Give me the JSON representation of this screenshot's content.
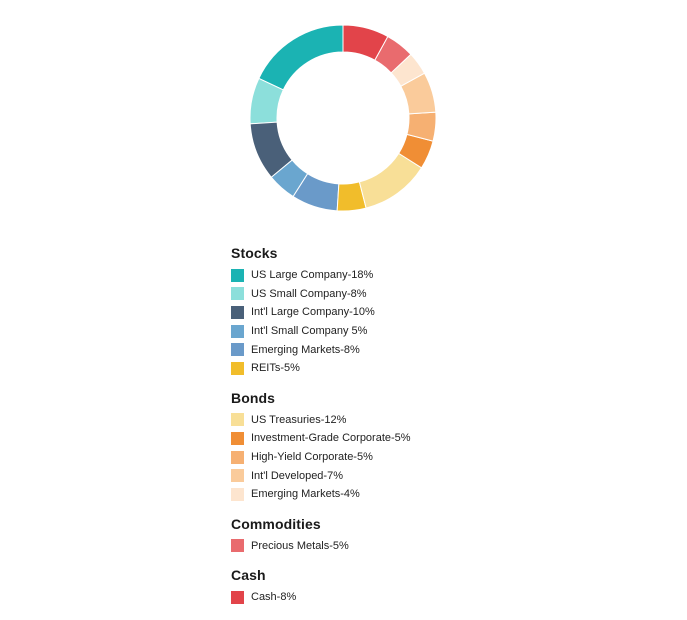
{
  "chart_data": {
    "type": "pie",
    "style": "donut",
    "groups": [
      {
        "title": "Stocks",
        "items": [
          {
            "label": "US Large Company-18%",
            "value": 18,
            "color": "#1bb3b3"
          },
          {
            "label": "US Small Company-8%",
            "value": 8,
            "color": "#8cdfdb"
          },
          {
            "label": "Int'l Large Company-10%",
            "value": 10,
            "color": "#4a6079"
          },
          {
            "label": "Int'l Small Company 5%",
            "value": 5,
            "color": "#6aa6cf"
          },
          {
            "label": "Emerging Markets-8%",
            "value": 8,
            "color": "#6a9ac9"
          },
          {
            "label": "REITs-5%",
            "value": 5,
            "color": "#f1bd2b"
          }
        ]
      },
      {
        "title": "Bonds",
        "items": [
          {
            "label": "US Treasuries-12%",
            "value": 12,
            "color": "#f8df97"
          },
          {
            "label": "Investment-Grade Corporate-5%",
            "value": 5,
            "color": "#f08e35"
          },
          {
            "label": "High-Yield Corporate-5%",
            "value": 5,
            "color": "#f6b072"
          },
          {
            "label": "Int'l Developed-7%",
            "value": 7,
            "color": "#facb9b"
          },
          {
            "label": "Emerging Markets-4%",
            "value": 4,
            "color": "#fde5cf"
          }
        ]
      },
      {
        "title": "Commodities",
        "items": [
          {
            "label": "Precious Metals-5%",
            "value": 5,
            "color": "#e96b6e"
          }
        ]
      },
      {
        "title": "Cash",
        "items": [
          {
            "label": "Cash-8%",
            "value": 8,
            "color": "#e2444a"
          }
        ]
      }
    ],
    "start_angle_deg": 90,
    "direction": "counterclockwise"
  }
}
